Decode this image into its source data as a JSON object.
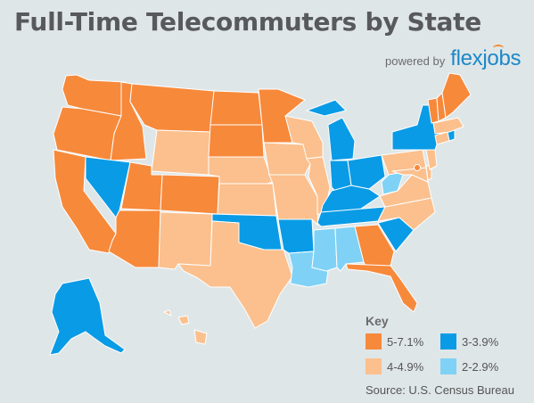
{
  "title": "Full-Time Telecommuters by State",
  "powered_by": {
    "label": "powered by",
    "brand": "flexjobs",
    "brand_color": "#1d88c8",
    "brand_accent": "#f58a2e"
  },
  "legend": {
    "title": "Key",
    "items": [
      {
        "label": "5-7.1%",
        "color": "#f7893b"
      },
      {
        "label": "3-3.9%",
        "color": "#0a9be6"
      },
      {
        "label": "4-4.9%",
        "color": "#fbc08e"
      },
      {
        "label": "2-2.9%",
        "color": "#7fd2f5"
      }
    ]
  },
  "source": "Source: U.S. Census Bureau",
  "categories": {
    "5-7.1%": [
      "WA",
      "OR",
      "CA",
      "ID",
      "MT",
      "UT",
      "AZ",
      "CO",
      "ND",
      "SD",
      "MN",
      "GA",
      "FL",
      "ME",
      "NH",
      "VT",
      "DC"
    ],
    "3-3.9%": [
      "NV",
      "MI",
      "IN",
      "OH",
      "KY",
      "TN",
      "OK",
      "AR",
      "SC",
      "NY",
      "AK",
      "RI"
    ],
    "4-4.9%": [
      "WY",
      "NE",
      "KS",
      "NM",
      "TX",
      "IA",
      "WI",
      "IL",
      "MO",
      "NC",
      "VA",
      "PA",
      "NJ",
      "MD",
      "DE",
      "MA",
      "CT",
      "HI"
    ],
    "2-2.9%": [
      "WV",
      "MS",
      "AL",
      "LA"
    ]
  }
}
